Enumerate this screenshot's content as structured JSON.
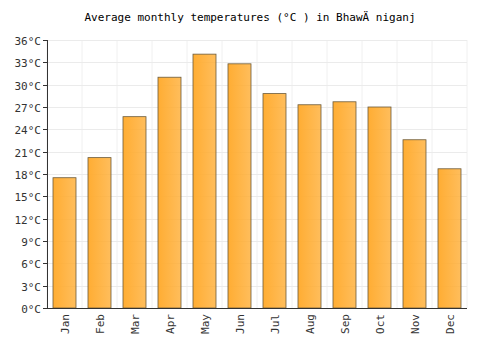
{
  "chart_data": {
    "type": "bar",
    "title": "Average monthly temperatures (°C ) in BhawÄ niganj",
    "categories": [
      "Jan",
      "Feb",
      "Mar",
      "Apr",
      "May",
      "Jun",
      "Jul",
      "Aug",
      "Sep",
      "Oct",
      "Nov",
      "Dec"
    ],
    "values": [
      17.5,
      20.2,
      25.7,
      31.0,
      34.1,
      32.8,
      28.8,
      27.3,
      27.7,
      27.0,
      22.6,
      18.7
    ],
    "color": "#ffad33",
    "ylim": [
      0,
      36
    ],
    "yticks": [
      {
        "value": 0,
        "label": "0°C"
      },
      {
        "value": 3,
        "label": "3°C"
      },
      {
        "value": 6,
        "label": "6°C"
      },
      {
        "value": 9,
        "label": "9°C"
      },
      {
        "value": 12,
        "label": "12°C"
      },
      {
        "value": 15,
        "label": "15°C"
      },
      {
        "value": 18,
        "label": "18°C"
      },
      {
        "value": 21,
        "label": "21°C"
      },
      {
        "value": 24,
        "label": "24°C"
      },
      {
        "value": 27,
        "label": "27°C"
      },
      {
        "value": 30,
        "label": "30°C"
      },
      {
        "value": 33,
        "label": "33°C"
      },
      {
        "value": 36,
        "label": "36°C"
      }
    ],
    "grid": true
  }
}
